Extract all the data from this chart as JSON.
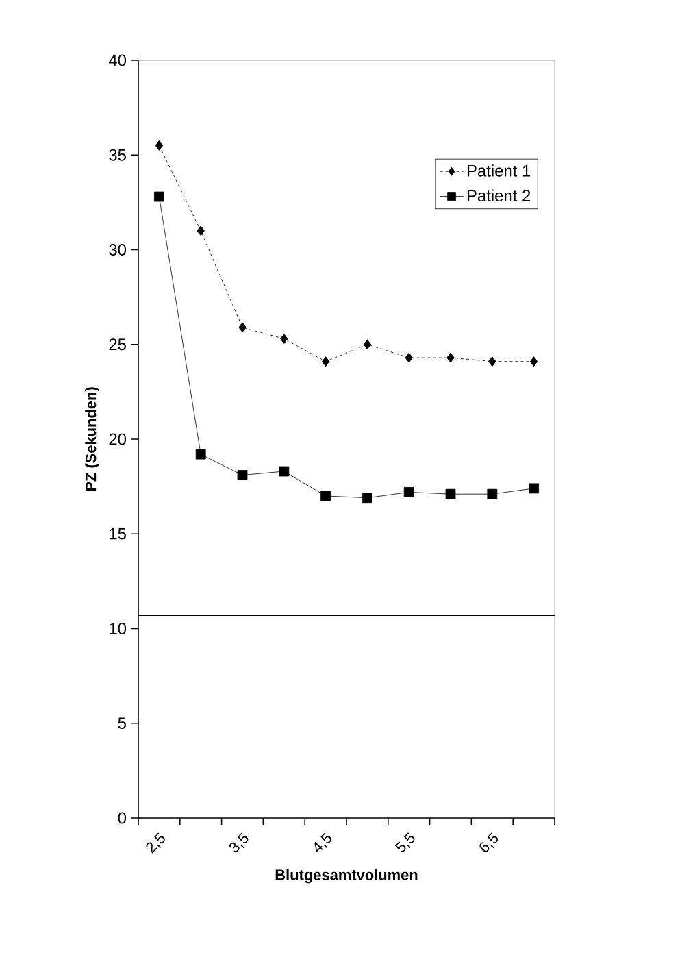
{
  "chart_data": {
    "type": "line",
    "xlabel": "Blutgesamtvolumen",
    "ylabel": "PZ (Sekunden)",
    "categories": [
      "2,5",
      null,
      "3,5",
      null,
      "4,5",
      null,
      "5,5",
      null,
      "6,5",
      null
    ],
    "series": [
      {
        "name": "Patient 1",
        "color": "#000000",
        "marker": "diamond",
        "line_style": "dotted",
        "values": [
          35.5,
          31.0,
          25.9,
          25.3,
          24.1,
          25.0,
          24.3,
          24.3,
          24.1,
          24.1
        ]
      },
      {
        "name": "Patient 2",
        "color": "#000000",
        "marker": "square",
        "line_style": "solid",
        "values": [
          32.8,
          19.2,
          18.1,
          18.3,
          17.0,
          16.9,
          17.2,
          17.1,
          17.1,
          17.4
        ]
      }
    ],
    "ylim": [
      0,
      40
    ],
    "yticks": [
      0,
      5,
      10,
      15,
      20,
      25,
      30,
      35,
      40
    ],
    "ref_lines": [
      {
        "axis": "y",
        "value": 10.7,
        "color": "#000000"
      }
    ],
    "grid": false,
    "legend": "top right"
  }
}
